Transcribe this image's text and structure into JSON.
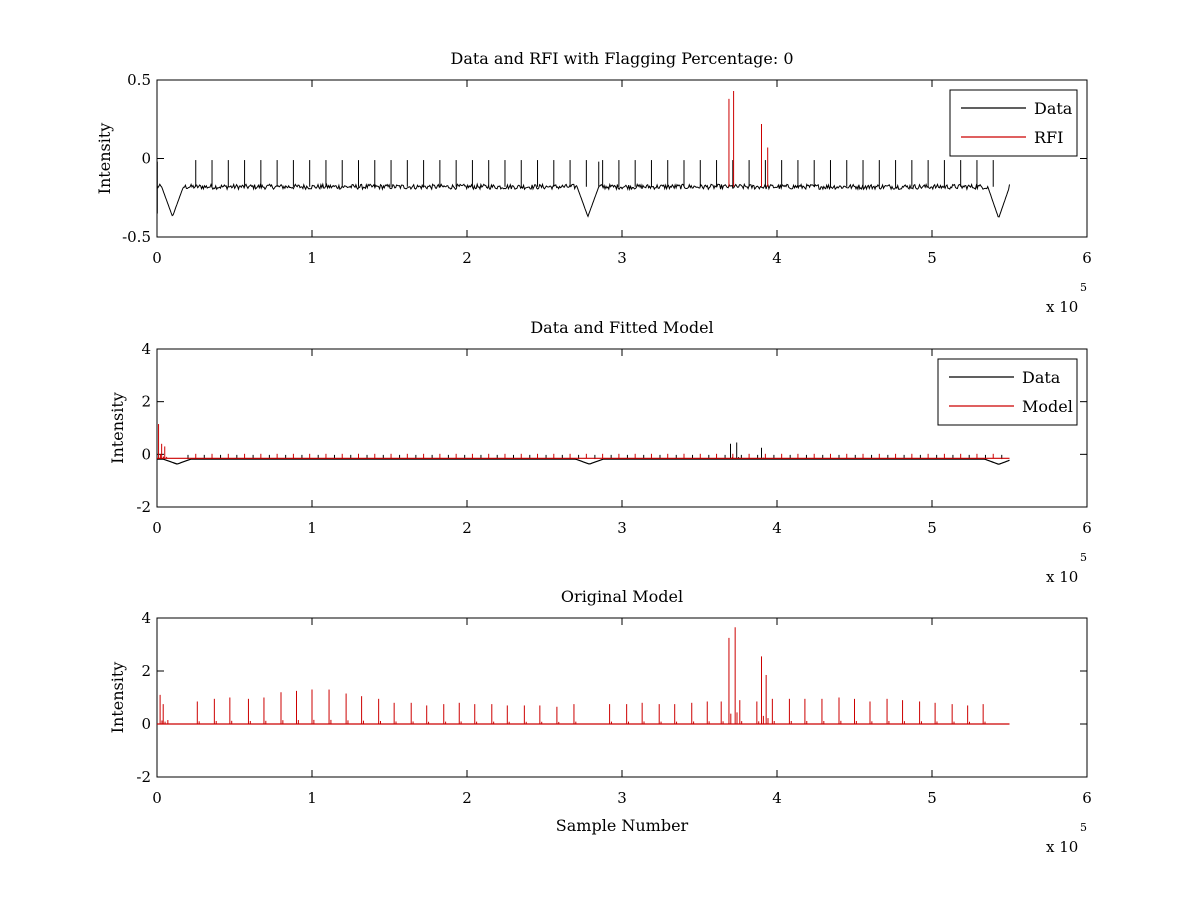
{
  "figure": {
    "background": "#ffffff"
  },
  "chart_data": [
    {
      "type": "line",
      "title": "Data and RFI with Flagging Percentage: 0",
      "xlabel": "",
      "ylabel": "Intensity",
      "xlim": [
        0,
        6
      ],
      "ylim": [
        -0.5,
        0.5
      ],
      "x_ticks": [
        "0",
        "1",
        "2",
        "3",
        "4",
        "5",
        "6"
      ],
      "y_ticks": [
        "0.5",
        "0",
        "-0.5"
      ],
      "x_exponent": {
        "base": "x 10",
        "power": "5"
      },
      "x_data_range": [
        0,
        5.5
      ],
      "legend": {
        "position": "top-right",
        "entries": [
          "Data",
          "RFI"
        ]
      },
      "series": [
        {
          "name": "Data",
          "color": "#000000",
          "baseline": -0.18,
          "noise": 0.02,
          "dips": [
            [
              0.1,
              -0.37
            ],
            [
              2.78,
              -0.37
            ],
            [
              5.43,
              -0.38
            ]
          ],
          "spike_tops": -0.01
        },
        {
          "name": "RFI",
          "color": "#cc0000",
          "spikes": [
            [
              3.69,
              0.38
            ],
            [
              3.72,
              0.43
            ],
            [
              3.9,
              0.22
            ],
            [
              3.94,
              0.07
            ]
          ]
        }
      ]
    },
    {
      "type": "line",
      "title": "Data and Fitted Model",
      "xlabel": "",
      "ylabel": "Intensity",
      "xlim": [
        0,
        6
      ],
      "ylim": [
        -2,
        4
      ],
      "x_ticks": [
        "0",
        "1",
        "2",
        "3",
        "4",
        "5",
        "6"
      ],
      "y_ticks": [
        "4",
        "2",
        "0",
        "-2"
      ],
      "x_exponent": {
        "base": "x 10",
        "power": "5"
      },
      "x_data_range": [
        0,
        5.5
      ],
      "legend": {
        "position": "top-right",
        "entries": [
          "Data",
          "Model"
        ]
      },
      "series": [
        {
          "name": "Data",
          "color": "#000000",
          "baseline": -0.18,
          "dips": [
            [
              0.13,
              -0.37
            ],
            [
              2.79,
              -0.37
            ],
            [
              5.43,
              -0.38
            ]
          ],
          "spikes": [
            [
              3.7,
              0.4
            ],
            [
              3.74,
              0.45
            ],
            [
              3.9,
              0.25
            ]
          ]
        },
        {
          "name": "Model",
          "color": "#cc0000",
          "baseline": -0.15,
          "spikes": [
            [
              0.01,
              1.15
            ],
            [
              0.03,
              0.4
            ],
            [
              0.05,
              0.3
            ]
          ]
        }
      ]
    },
    {
      "type": "line",
      "title": "Original Model",
      "xlabel": "Sample Number",
      "ylabel": "Intensity",
      "xlim": [
        0,
        6
      ],
      "ylim": [
        -2,
        4
      ],
      "x_ticks": [
        "0",
        "1",
        "2",
        "3",
        "4",
        "5",
        "6"
      ],
      "y_ticks": [
        "4",
        "2",
        "0",
        "-2"
      ],
      "x_exponent": {
        "base": "x 10",
        "power": "5"
      },
      "x_data_range": [
        0,
        5.5
      ],
      "series": [
        {
          "name": "Model",
          "color": "#cc0000",
          "baseline": 0,
          "spikes": [
            [
              0.02,
              1.1
            ],
            [
              0.04,
              0.75
            ],
            [
              0.07,
              0.15
            ],
            [
              0.26,
              0.85
            ],
            [
              0.37,
              0.95
            ],
            [
              0.47,
              1.0
            ],
            [
              0.59,
              0.95
            ],
            [
              0.69,
              1.0
            ],
            [
              0.8,
              1.2
            ],
            [
              0.9,
              1.25
            ],
            [
              1.0,
              1.3
            ],
            [
              1.11,
              1.3
            ],
            [
              1.22,
              1.15
            ],
            [
              1.32,
              1.05
            ],
            [
              1.43,
              0.95
            ],
            [
              1.53,
              0.8
            ],
            [
              1.64,
              0.8
            ],
            [
              1.74,
              0.7
            ],
            [
              1.85,
              0.75
            ],
            [
              1.95,
              0.8
            ],
            [
              2.05,
              0.75
            ],
            [
              2.16,
              0.75
            ],
            [
              2.26,
              0.7
            ],
            [
              2.37,
              0.7
            ],
            [
              2.47,
              0.7
            ],
            [
              2.58,
              0.65
            ],
            [
              2.69,
              0.75
            ],
            [
              2.92,
              0.75
            ],
            [
              3.03,
              0.75
            ],
            [
              3.13,
              0.8
            ],
            [
              3.24,
              0.75
            ],
            [
              3.34,
              0.75
            ],
            [
              3.45,
              0.8
            ],
            [
              3.55,
              0.85
            ],
            [
              3.64,
              0.85
            ],
            [
              3.69,
              3.25
            ],
            [
              3.73,
              3.65
            ],
            [
              3.76,
              0.9
            ],
            [
              3.87,
              0.85
            ],
            [
              3.9,
              2.55
            ],
            [
              3.93,
              1.85
            ],
            [
              3.97,
              0.95
            ],
            [
              4.08,
              0.95
            ],
            [
              4.18,
              0.95
            ],
            [
              4.29,
              0.95
            ],
            [
              4.4,
              1.0
            ],
            [
              4.5,
              0.95
            ],
            [
              4.6,
              0.85
            ],
            [
              4.71,
              0.95
            ],
            [
              4.81,
              0.9
            ],
            [
              4.92,
              0.85
            ],
            [
              5.02,
              0.8
            ],
            [
              5.13,
              0.75
            ],
            [
              5.23,
              0.7
            ],
            [
              5.33,
              0.75
            ]
          ]
        }
      ]
    }
  ]
}
